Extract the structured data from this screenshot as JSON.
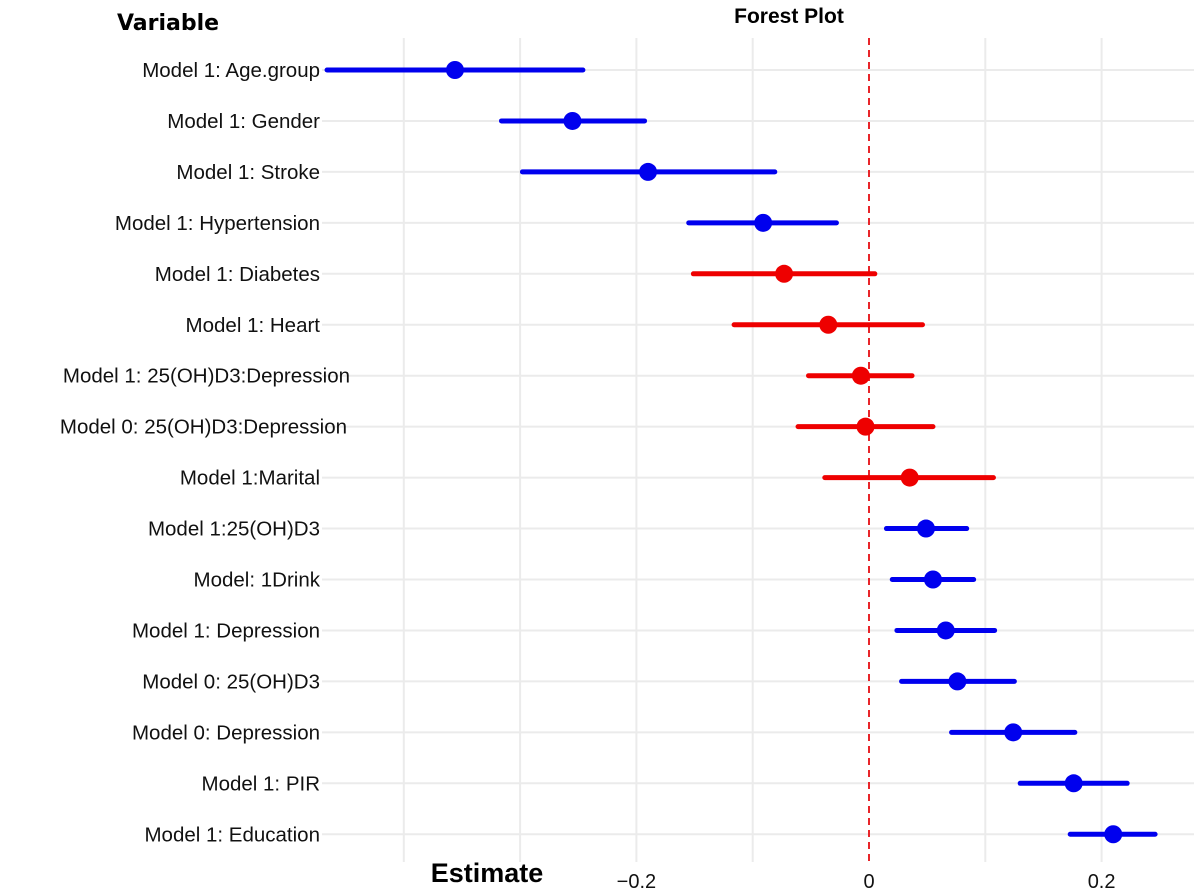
{
  "chart_data": {
    "type": "forest",
    "title": "Forest Plot",
    "xlabel": "Estimate",
    "ylabel": "Variable",
    "xlim": [
      -0.47,
      0.28
    ],
    "x_ticks": [
      -0.2,
      0,
      0.2
    ],
    "x_tick_labels": [
      "−0.2",
      "0",
      "0.2"
    ],
    "minor_gridlines": [
      -0.4,
      -0.3,
      -0.1,
      0.1
    ],
    "reference_line": 0,
    "grid": true,
    "colors": {
      "significant": "#0000ee",
      "nonsignificant": "#ee0000",
      "reference": "#e8252a"
    },
    "rows": [
      {
        "label": "Model 1: Age.group",
        "estimate": -0.356,
        "lower": -0.466,
        "upper": -0.246,
        "significant": true
      },
      {
        "label": "Model 1: Gender",
        "estimate": -0.255,
        "lower": -0.316,
        "upper": -0.193,
        "significant": true
      },
      {
        "label": "Model 1: Stroke",
        "estimate": -0.19,
        "lower": -0.298,
        "upper": -0.081,
        "significant": true
      },
      {
        "label": "Model 1: Hypertension",
        "estimate": -0.091,
        "lower": -0.155,
        "upper": -0.028,
        "significant": true
      },
      {
        "label": "Model 1: Diabetes",
        "estimate": -0.073,
        "lower": -0.151,
        "upper": 0.005,
        "significant": false
      },
      {
        "label": "Model 1: Heart",
        "estimate": -0.035,
        "lower": -0.116,
        "upper": 0.046,
        "significant": false
      },
      {
        "label": "Model 1: 25(OH)D3:Depression",
        "estimate": -0.007,
        "lower": -0.052,
        "upper": 0.037,
        "significant": false
      },
      {
        "label": "Model 0: 25(OH)D3:Depression",
        "estimate": -0.003,
        "lower": -0.061,
        "upper": 0.055,
        "significant": false
      },
      {
        "label": "Model 1:Marital",
        "estimate": 0.035,
        "lower": -0.038,
        "upper": 0.107,
        "significant": false
      },
      {
        "label": "Model 1:25(OH)D3",
        "estimate": 0.049,
        "lower": 0.015,
        "upper": 0.084,
        "significant": true
      },
      {
        "label": "Model: 1Drink",
        "estimate": 0.055,
        "lower": 0.02,
        "upper": 0.09,
        "significant": true
      },
      {
        "label": "Model 1: Depression",
        "estimate": 0.066,
        "lower": 0.024,
        "upper": 0.108,
        "significant": true
      },
      {
        "label": "Model 0: 25(OH)D3",
        "estimate": 0.076,
        "lower": 0.028,
        "upper": 0.125,
        "significant": true
      },
      {
        "label": "Model 0: Depression",
        "estimate": 0.124,
        "lower": 0.071,
        "upper": 0.177,
        "significant": true
      },
      {
        "label": "Model 1: PIR",
        "estimate": 0.176,
        "lower": 0.13,
        "upper": 0.222,
        "significant": true
      },
      {
        "label": "Model 1: Education",
        "estimate": 0.21,
        "lower": 0.173,
        "upper": 0.246,
        "significant": true
      }
    ]
  }
}
